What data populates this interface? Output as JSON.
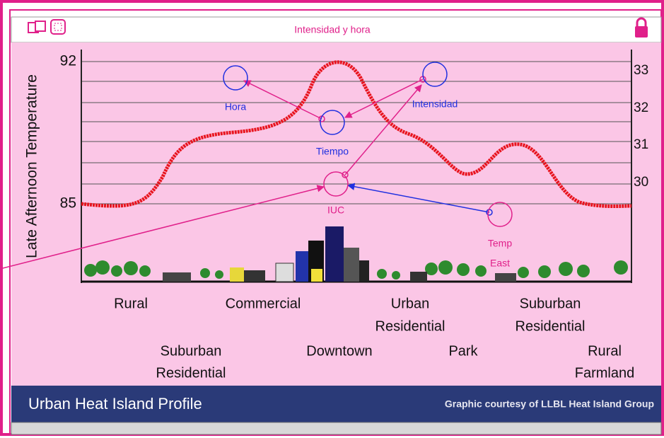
{
  "header": {
    "title": "Intensidad y hora"
  },
  "axis": {
    "left_label": "Late Afternoon Temperature",
    "left_ticks": [
      92,
      85
    ],
    "right_ticks": [
      33,
      32,
      31,
      30
    ]
  },
  "nodes": [
    {
      "label": [
        "Hora"
      ]
    },
    {
      "label": [
        "Intensidad"
      ]
    },
    {
      "label": [
        "Tiempo"
      ]
    },
    {
      "label": [
        "IUC"
      ]
    },
    {
      "label": [
        "Temp",
        "East"
      ]
    }
  ],
  "zones": [
    {
      "label": [
        "Rural"
      ]
    },
    {
      "label": [
        "Commercial"
      ]
    },
    {
      "label": [
        "Urban",
        "Residential"
      ]
    },
    {
      "label": [
        "Suburban",
        "Residential"
      ]
    },
    {
      "label": [
        "Suburban",
        "Residential"
      ]
    },
    {
      "label": [
        "Downtown"
      ]
    },
    {
      "label": [
        "Park"
      ]
    },
    {
      "label": [
        "Rural",
        "Farmland"
      ]
    }
  ],
  "footer": {
    "title": "Urban Heat Island Profile",
    "credit": "Graphic courtesy of LLBL Heat Island Group"
  }
}
